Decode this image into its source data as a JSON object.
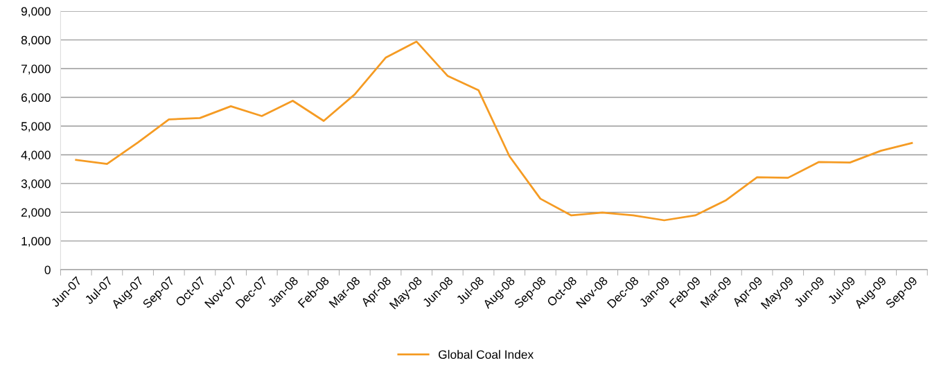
{
  "chart_data": {
    "type": "line",
    "categories": [
      "Jun-07",
      "Jul-07",
      "Aug-07",
      "Sep-07",
      "Oct-07",
      "Nov-07",
      "Dec-07",
      "Jan-08",
      "Feb-08",
      "Mar-08",
      "Apr-08",
      "May-08",
      "Jun-08",
      "Jul-08",
      "Aug-08",
      "Sep-08",
      "Oct-08",
      "Nov-08",
      "Dec-08",
      "Jan-09",
      "Feb-09",
      "Mar-09",
      "Apr-09",
      "May-09",
      "Jun-09",
      "Jul-09",
      "Aug-09",
      "Sep-09"
    ],
    "series": [
      {
        "name": "Global Coal Index",
        "color": "#f59b23",
        "values": [
          3820,
          3680,
          4430,
          5230,
          5280,
          5690,
          5350,
          5880,
          5180,
          6100,
          7380,
          7940,
          6750,
          6250,
          3950,
          2470,
          1890,
          1990,
          1890,
          1720,
          1890,
          2420,
          3220,
          3200,
          3750,
          3730,
          4140,
          4410
        ]
      }
    ],
    "ylim": [
      0,
      9000
    ],
    "yticks": [
      {
        "value": 0,
        "label": "0"
      },
      {
        "value": 1000,
        "label": "1,000"
      },
      {
        "value": 2000,
        "label": "2,000"
      },
      {
        "value": 3000,
        "label": "3,000"
      },
      {
        "value": 4000,
        "label": "4,000"
      },
      {
        "value": 5000,
        "label": "5,000"
      },
      {
        "value": 6000,
        "label": "6,000"
      },
      {
        "value": 7000,
        "label": "7,000"
      },
      {
        "value": 8000,
        "label": "8,000"
      },
      {
        "value": 9000,
        "label": "9,000"
      }
    ],
    "grid": "y",
    "legend": "bottom",
    "marker": "none",
    "line_style": "solid"
  }
}
